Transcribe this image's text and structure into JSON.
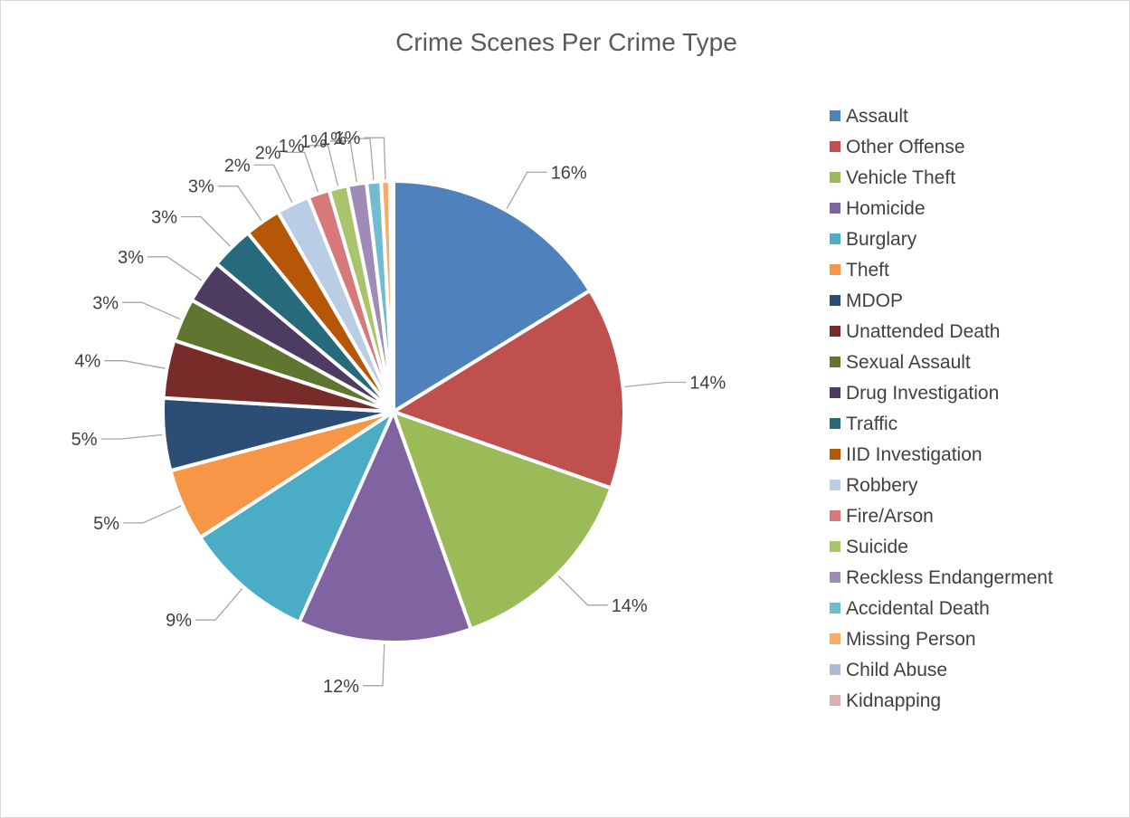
{
  "chart_data": {
    "type": "pie",
    "title": "Crime Scenes Per Crime Type",
    "legend_position": "right",
    "slices": [
      {
        "name": "Assault",
        "value": 16,
        "label": "16%",
        "color": "#4f81bd"
      },
      {
        "name": "Other Offense",
        "value": 14,
        "label": "14%",
        "color": "#c0504d"
      },
      {
        "name": "Vehicle Theft",
        "value": 14,
        "label": "14%",
        "color": "#9bbb59"
      },
      {
        "name": "Homicide",
        "value": 12,
        "label": "12%",
        "color": "#8064a2"
      },
      {
        "name": "Burglary",
        "value": 9,
        "label": "9%",
        "color": "#4bacc6"
      },
      {
        "name": "Theft",
        "value": 5,
        "label": "5%",
        "color": "#f79646"
      },
      {
        "name": "MDOP",
        "value": 5,
        "label": "5%",
        "color": "#2c4d75"
      },
      {
        "name": "Unattended Death",
        "value": 4,
        "label": "4%",
        "color": "#772c2a"
      },
      {
        "name": "Sexual Assault",
        "value": 3,
        "label": "3%",
        "color": "#5f7530"
      },
      {
        "name": "Drug Investigation",
        "value": 3,
        "label": "3%",
        "color": "#4d3b62"
      },
      {
        "name": "Traffic",
        "value": 3,
        "label": "3%",
        "color": "#276a7c"
      },
      {
        "name": "IID Investigation",
        "value": 2.5,
        "label": "3%",
        "color": "#b65708"
      },
      {
        "name": "Robbery",
        "value": 2.3,
        "label": "2%",
        "color": "#b9cde5"
      },
      {
        "name": "Fire/Arson",
        "value": 1.5,
        "label": "2%",
        "color": "#d7797a"
      },
      {
        "name": "Suicide",
        "value": 1.3,
        "label": "1%",
        "color": "#a9c46a"
      },
      {
        "name": "Reckless Endangerment",
        "value": 1.3,
        "label": "1%",
        "color": "#9f8bb8"
      },
      {
        "name": "Accidental Death",
        "value": 1.0,
        "label": "1%",
        "color": "#72bcd1"
      },
      {
        "name": "Missing Person",
        "value": 0.6,
        "label": "1%",
        "color": "#f9ab6c"
      },
      {
        "name": "Child Abuse",
        "value": 0.15,
        "label": "",
        "color": "#adbcd6"
      },
      {
        "name": "Kidnapping",
        "value": 0.1,
        "label": "",
        "color": "#dbb0b0"
      }
    ]
  }
}
